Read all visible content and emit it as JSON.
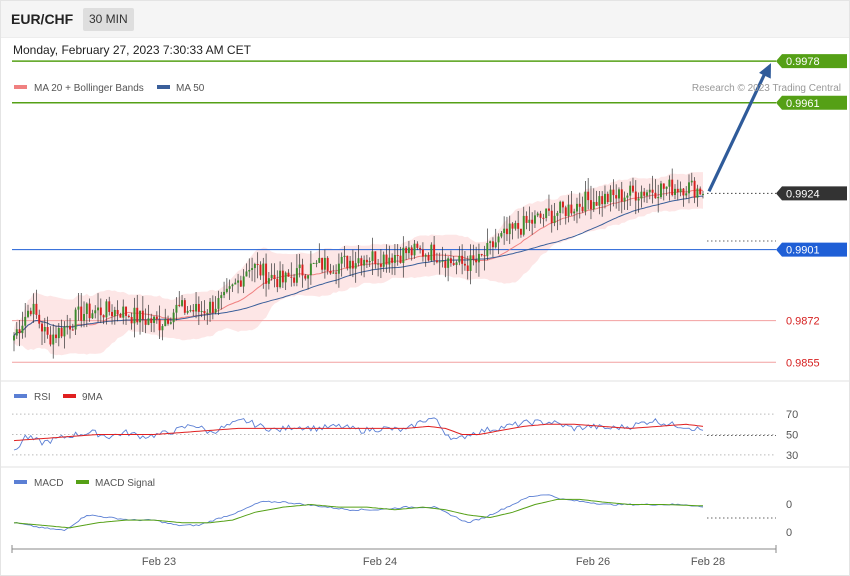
{
  "header": {
    "symbol": "EUR/CHF",
    "timeframe": "30 MIN",
    "datetime": "Monday, February 27, 2023 7:30:33 AM CET"
  },
  "colors": {
    "ma20": "#f08080",
    "bollinger_fill": "#fde2e2",
    "ma50": "#3a5f9a",
    "resistance": "#55a016",
    "support": "#1f5fd6",
    "lower_levels": "#f2a0a0",
    "last_price": "#333333",
    "arrow": "#2f5b9a",
    "candle_up": "#3c8c2e",
    "candle_down": "#d62020",
    "rsi": "#5b7fd4",
    "rsi_ma": "#e02020",
    "macd": "#5b7fd4",
    "macd_signal": "#55a016"
  },
  "chart_data": [
    {
      "type": "candlestick",
      "legend": [
        {
          "label": "MA 20 + Bollinger Bands",
          "color": "#f08080"
        },
        {
          "label": "MA 50",
          "color": "#3a5f9a"
        }
      ],
      "credit": "Research © 2023 Trading Central",
      "x_labels": [
        "Feb 23",
        "Feb 24",
        "Feb 26",
        "Feb 28"
      ],
      "ylim": [
        0.9849,
        0.9985
      ],
      "levels": [
        {
          "value": 0.9978,
          "label": "0.9978",
          "kind": "resistance"
        },
        {
          "value": 0.9961,
          "label": "0.9961",
          "kind": "resistance"
        },
        {
          "value": 0.9924,
          "label": "0.9924",
          "kind": "last"
        },
        {
          "value": 0.9901,
          "label": "0.9901",
          "kind": "support"
        },
        {
          "value": 0.9872,
          "label": "0.9872",
          "kind": "lower"
        },
        {
          "value": 0.9855,
          "label": "0.9855",
          "kind": "lower"
        }
      ],
      "target_arrow": {
        "from": 0.9924,
        "to": 0.9978
      },
      "close_anchors": [
        [
          0,
          0.9866
        ],
        [
          6,
          0.9878
        ],
        [
          12,
          0.9865
        ],
        [
          18,
          0.9869
        ],
        [
          24,
          0.9875
        ],
        [
          30,
          0.9876
        ],
        [
          38,
          0.9876
        ],
        [
          45,
          0.9873
        ],
        [
          52,
          0.9871
        ],
        [
          58,
          0.9877
        ],
        [
          66,
          0.9876
        ],
        [
          75,
          0.988
        ],
        [
          80,
          0.9888
        ],
        [
          84,
          0.9895
        ],
        [
          90,
          0.9891
        ],
        [
          96,
          0.9888
        ],
        [
          104,
          0.9893
        ],
        [
          110,
          0.9895
        ],
        [
          116,
          0.9895
        ],
        [
          124,
          0.9898
        ],
        [
          132,
          0.9898
        ],
        [
          140,
          0.99
        ],
        [
          150,
          0.99
        ],
        [
          156,
          0.9896
        ],
        [
          160,
          0.9895
        ],
        [
          166,
          0.9896
        ],
        [
          172,
          0.9904
        ],
        [
          180,
          0.991
        ],
        [
          188,
          0.9914
        ],
        [
          196,
          0.9917
        ],
        [
          204,
          0.9921
        ],
        [
          212,
          0.9922
        ],
        [
          220,
          0.9924
        ],
        [
          230,
          0.9926
        ],
        [
          240,
          0.9927
        ],
        [
          246,
          0.9925
        ]
      ]
    },
    {
      "type": "line",
      "legend": [
        {
          "label": "RSI",
          "color": "#5b7fd4"
        },
        {
          "label": "9MA",
          "color": "#e02020"
        }
      ],
      "y_ticks": [
        "70",
        "50",
        "30"
      ],
      "ylim": [
        22,
        78
      ],
      "rsi_anchors": [
        [
          0,
          32
        ],
        [
          4,
          48
        ],
        [
          10,
          42
        ],
        [
          16,
          46
        ],
        [
          22,
          50
        ],
        [
          28,
          52
        ],
        [
          34,
          48
        ],
        [
          40,
          52
        ],
        [
          46,
          48
        ],
        [
          52,
          50
        ],
        [
          58,
          54
        ],
        [
          64,
          60
        ],
        [
          70,
          52
        ],
        [
          76,
          58
        ],
        [
          82,
          64
        ],
        [
          88,
          58
        ],
        [
          94,
          54
        ],
        [
          100,
          58
        ],
        [
          108,
          56
        ],
        [
          116,
          58
        ],
        [
          124,
          54
        ],
        [
          132,
          56
        ],
        [
          140,
          54
        ],
        [
          146,
          64
        ],
        [
          150,
          66
        ],
        [
          154,
          52
        ],
        [
          158,
          44
        ],
        [
          162,
          50
        ],
        [
          168,
          54
        ],
        [
          176,
          58
        ],
        [
          184,
          62
        ],
        [
          192,
          62
        ],
        [
          200,
          56
        ],
        [
          206,
          58
        ],
        [
          212,
          56
        ],
        [
          220,
          58
        ],
        [
          228,
          64
        ],
        [
          234,
          60
        ],
        [
          240,
          58
        ],
        [
          246,
          54
        ]
      ],
      "ma_anchors": [
        [
          0,
          44
        ],
        [
          10,
          46
        ],
        [
          20,
          48
        ],
        [
          30,
          50
        ],
        [
          40,
          50
        ],
        [
          50,
          50
        ],
        [
          60,
          52
        ],
        [
          70,
          54
        ],
        [
          80,
          56
        ],
        [
          90,
          56
        ],
        [
          100,
          56
        ],
        [
          110,
          56
        ],
        [
          120,
          56
        ],
        [
          130,
          56
        ],
        [
          140,
          56
        ],
        [
          148,
          58
        ],
        [
          154,
          56
        ],
        [
          160,
          50
        ],
        [
          166,
          50
        ],
        [
          174,
          54
        ],
        [
          182,
          58
        ],
        [
          190,
          60
        ],
        [
          200,
          60
        ],
        [
          210,
          58
        ],
        [
          220,
          56
        ],
        [
          230,
          58
        ],
        [
          240,
          60
        ],
        [
          246,
          58
        ]
      ]
    },
    {
      "type": "line",
      "legend": [
        {
          "label": "MACD",
          "color": "#5b7fd4"
        },
        {
          "label": "MACD Signal",
          "color": "#55a016"
        }
      ],
      "y_ticks": [
        "0",
        "0"
      ],
      "ylim": [
        -1.2,
        1.0
      ],
      "macd_anchors": [
        [
          0,
          -0.3
        ],
        [
          10,
          -0.5
        ],
        [
          18,
          -0.6
        ],
        [
          26,
          0.0
        ],
        [
          34,
          -0.1
        ],
        [
          42,
          -0.2
        ],
        [
          50,
          -0.2
        ],
        [
          58,
          -0.4
        ],
        [
          66,
          -0.4
        ],
        [
          74,
          -0.1
        ],
        [
          80,
          0.1
        ],
        [
          88,
          0.5
        ],
        [
          96,
          0.5
        ],
        [
          104,
          0.4
        ],
        [
          112,
          0.3
        ],
        [
          120,
          0.2
        ],
        [
          130,
          0.2
        ],
        [
          140,
          0.3
        ],
        [
          150,
          0.3
        ],
        [
          156,
          0.0
        ],
        [
          162,
          -0.3
        ],
        [
          168,
          -0.1
        ],
        [
          176,
          0.3
        ],
        [
          184,
          0.7
        ],
        [
          190,
          0.8
        ],
        [
          196,
          0.6
        ],
        [
          204,
          0.5
        ],
        [
          212,
          0.4
        ],
        [
          220,
          0.4
        ],
        [
          230,
          0.4
        ],
        [
          240,
          0.4
        ],
        [
          246,
          0.3
        ]
      ],
      "signal_anchors": [
        [
          0,
          -0.3
        ],
        [
          10,
          -0.4
        ],
        [
          20,
          -0.5
        ],
        [
          30,
          -0.3
        ],
        [
          40,
          -0.2
        ],
        [
          50,
          -0.2
        ],
        [
          60,
          -0.3
        ],
        [
          70,
          -0.3
        ],
        [
          78,
          -0.2
        ],
        [
          86,
          0.1
        ],
        [
          96,
          0.3
        ],
        [
          106,
          0.4
        ],
        [
          116,
          0.3
        ],
        [
          126,
          0.3
        ],
        [
          136,
          0.2
        ],
        [
          146,
          0.3
        ],
        [
          154,
          0.2
        ],
        [
          162,
          0.0
        ],
        [
          170,
          -0.1
        ],
        [
          178,
          0.1
        ],
        [
          186,
          0.4
        ],
        [
          194,
          0.6
        ],
        [
          202,
          0.6
        ],
        [
          210,
          0.5
        ],
        [
          220,
          0.4
        ],
        [
          232,
          0.4
        ],
        [
          246,
          0.35
        ]
      ]
    }
  ]
}
